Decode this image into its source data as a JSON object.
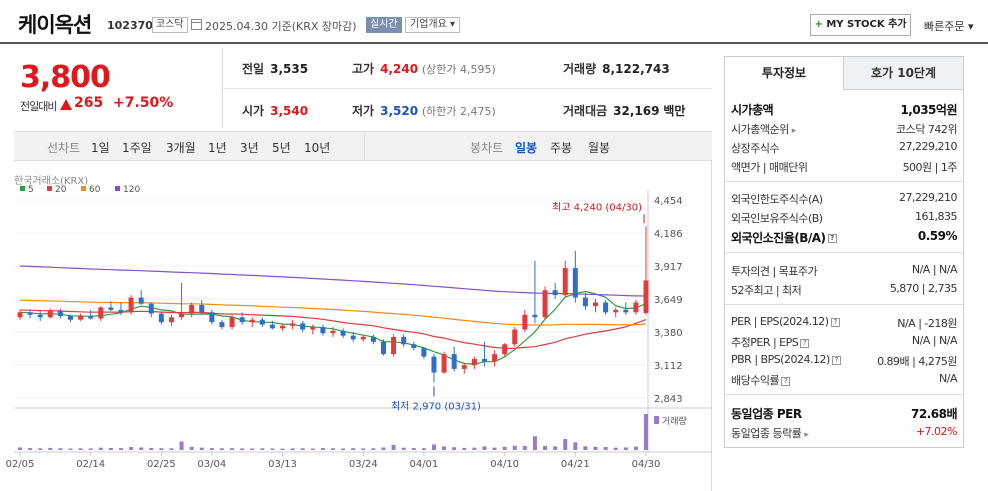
{
  "header": {
    "stock_name": "케이옥션",
    "stock_code": "102370",
    "market": "코스닥",
    "date_text": "2025.04.30 기준(KRX 장마감)",
    "realtime_label": "실시간",
    "company_label": "기업개요 ▾",
    "mystock_label": "MY STOCK 추가",
    "quick_order_label": "빠른주문 ▾"
  },
  "price": {
    "current": "3,800",
    "prev_label": "전일대비",
    "change_amount": "265",
    "change_pct": "+7.50%"
  },
  "quote": {
    "prev_close": {
      "label": "전일",
      "value": "3,535"
    },
    "high": {
      "label": "고가",
      "value": "4,240",
      "sub": "(상한가 4,595)"
    },
    "volume": {
      "label": "거래량",
      "value": "8,122,743"
    },
    "open": {
      "label": "시가",
      "value": "3,540"
    },
    "low": {
      "label": "저가",
      "value": "3,520",
      "sub": "(하한가 2,475)"
    },
    "amount": {
      "label": "거래대금",
      "value": "32,169",
      "unit": "백만"
    }
  },
  "toolbar": {
    "line_label": "선차트",
    "periods": [
      "1일",
      "1주일",
      "3개월",
      "1년",
      "3년",
      "5년",
      "10년"
    ],
    "candle_label": "봉차트",
    "candle_types": [
      "일봉",
      "주봉",
      "월봉"
    ],
    "active_candle": "일봉"
  },
  "chart_data": {
    "type": "candlestick",
    "source_label": "한국거래소(KRX)",
    "ma_legend": [
      {
        "name": "5",
        "color": "#2e9e3e"
      },
      {
        "name": "20",
        "color": "#e03c3c"
      },
      {
        "name": "60",
        "color": "#f08c1c"
      },
      {
        "name": "120",
        "color": "#8a4fc7"
      }
    ],
    "y_ticks": [
      "4,454",
      "4,186",
      "3,917",
      "3,649",
      "3,380",
      "3,112",
      "2,843"
    ],
    "y_tick_values": [
      4454,
      4186,
      3917,
      3649,
      3380,
      3112,
      2843
    ],
    "x_labels": [
      "02/05",
      "02/14",
      "02/25",
      "03/04",
      "03/13",
      "03/24",
      "04/01",
      "04/10",
      "04/21",
      "04/30"
    ],
    "high_annotation": "최고 4,240 (04/30)",
    "low_annotation": "최저 2,970 (03/31)",
    "volume_label": "거래량",
    "candles": [
      [
        3500,
        3560,
        3480,
        3540
      ],
      [
        3540,
        3560,
        3490,
        3520
      ],
      [
        3520,
        3550,
        3470,
        3500
      ],
      [
        3500,
        3570,
        3490,
        3550
      ],
      [
        3550,
        3570,
        3490,
        3510
      ],
      [
        3510,
        3520,
        3460,
        3480
      ],
      [
        3480,
        3530,
        3470,
        3510
      ],
      [
        3510,
        3560,
        3480,
        3490
      ],
      [
        3490,
        3590,
        3470,
        3580
      ],
      [
        3580,
        3630,
        3550,
        3560
      ],
      [
        3560,
        3620,
        3520,
        3540
      ],
      [
        3540,
        3680,
        3520,
        3660
      ],
      [
        3660,
        3720,
        3600,
        3610
      ],
      [
        3610,
        3620,
        3500,
        3530
      ],
      [
        3530,
        3540,
        3440,
        3460
      ],
      [
        3460,
        3520,
        3430,
        3500
      ],
      [
        3500,
        3780,
        3480,
        3530
      ],
      [
        3530,
        3620,
        3500,
        3600
      ],
      [
        3600,
        3640,
        3520,
        3540
      ],
      [
        3540,
        3560,
        3440,
        3460
      ],
      [
        3460,
        3480,
        3400,
        3420
      ],
      [
        3420,
        3520,
        3400,
        3500
      ],
      [
        3500,
        3540,
        3440,
        3460
      ],
      [
        3460,
        3500,
        3420,
        3480
      ],
      [
        3480,
        3500,
        3420,
        3440
      ],
      [
        3440,
        3470,
        3400,
        3410
      ],
      [
        3410,
        3450,
        3390,
        3430
      ],
      [
        3430,
        3480,
        3400,
        3450
      ],
      [
        3450,
        3470,
        3380,
        3400
      ],
      [
        3400,
        3440,
        3360,
        3420
      ],
      [
        3420,
        3440,
        3350,
        3370
      ],
      [
        3370,
        3420,
        3340,
        3390
      ],
      [
        3390,
        3410,
        3330,
        3350
      ],
      [
        3350,
        3380,
        3300,
        3320
      ],
      [
        3320,
        3360,
        3300,
        3340
      ],
      [
        3340,
        3360,
        3280,
        3300
      ],
      [
        3300,
        3320,
        3190,
        3200
      ],
      [
        3200,
        3360,
        3180,
        3340
      ],
      [
        3340,
        3360,
        3260,
        3280
      ],
      [
        3280,
        3300,
        3230,
        3250
      ],
      [
        3250,
        3260,
        3160,
        3180
      ],
      [
        3180,
        3200,
        2970,
        3050
      ],
      [
        3050,
        3220,
        3040,
        3200
      ],
      [
        3200,
        3260,
        3060,
        3080
      ],
      [
        3080,
        3130,
        3040,
        3110
      ],
      [
        3110,
        3180,
        3080,
        3160
      ],
      [
        3160,
        3300,
        3100,
        3140
      ],
      [
        3140,
        3230,
        3100,
        3200
      ],
      [
        3200,
        3290,
        3180,
        3280
      ],
      [
        3280,
        3420,
        3260,
        3400
      ],
      [
        3400,
        3560,
        3380,
        3520
      ],
      [
        3520,
        3960,
        3450,
        3500
      ],
      [
        3500,
        3750,
        3480,
        3720
      ],
      [
        3720,
        3780,
        3650,
        3680
      ],
      [
        3680,
        3960,
        3660,
        3900
      ],
      [
        3900,
        4040,
        3620,
        3660
      ],
      [
        3660,
        3700,
        3560,
        3590
      ],
      [
        3590,
        3650,
        3540,
        3620
      ],
      [
        3620,
        3640,
        3520,
        3540
      ],
      [
        3540,
        3580,
        3500,
        3560
      ],
      [
        3560,
        3620,
        3520,
        3540
      ],
      [
        3540,
        3640,
        3520,
        3620
      ],
      [
        3535,
        4240,
        3520,
        3800
      ]
    ],
    "volumes": [
      120,
      90,
      80,
      100,
      85,
      70,
      80,
      75,
      110,
      95,
      90,
      140,
      120,
      100,
      85,
      80,
      400,
      150,
      110,
      90,
      80,
      85,
      75,
      70,
      80,
      70,
      65,
      75,
      80,
      70,
      90,
      80,
      70,
      85,
      75,
      80,
      120,
      240,
      110,
      90,
      85,
      260,
      170,
      130,
      100,
      110,
      170,
      110,
      150,
      200,
      190,
      650,
      190,
      170,
      520,
      360,
      180,
      150,
      140,
      110,
      120,
      160,
      1700
    ]
  },
  "panel": {
    "tab_invest": "투자정보",
    "tab_hoga": "호가 10단계",
    "rows": [
      {
        "k": "시가총액",
        "v": "1,035억원"
      },
      {
        "k": "시가총액순위",
        "v": "코스닥 742위"
      },
      {
        "k": "상장주식수",
        "v": "27,229,210"
      },
      {
        "k": "액면가 | 매매단위",
        "v": "500원 | 1주"
      },
      {
        "k": "외국인한도주식수(A)",
        "v": "27,229,210"
      },
      {
        "k": "외국인보유주식수(B)",
        "v": "161,835"
      },
      {
        "k": "외국인소진율(B/A)",
        "v": "0.59%"
      },
      {
        "k": "투자의견 | 목표주가",
        "v": "N/A | N/A"
      },
      {
        "k": "52주최고 | 최저",
        "v": "5,870 | 2,735"
      },
      {
        "k": "PER | EPS(2024.12)",
        "v": "N/A | -218원"
      },
      {
        "k": "추정PER | EPS",
        "v": "N/A | N/A"
      },
      {
        "k": "PBR | BPS(2024.12)",
        "v": "0.89배 | 4,275원"
      },
      {
        "k": "배당수익률",
        "v": "N/A"
      },
      {
        "k": "동일업종 PER",
        "v": "72.68배"
      },
      {
        "k": "동일업종 등락률",
        "v": "+7.02%"
      }
    ]
  }
}
